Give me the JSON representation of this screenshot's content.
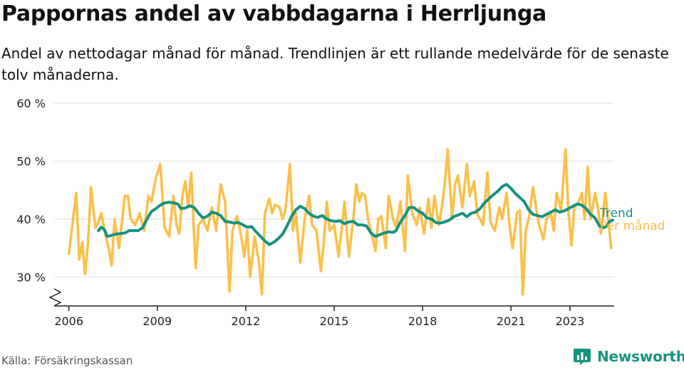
{
  "title": "Pappornas andel av vabbdagarna i Herrljunga",
  "subtitle": "Andel av nettodagar månad för månad. Trendlinjen är ett rullande medelvärde för de senaste tolv månaderna.",
  "source": "Källa: Försäkringskassan",
  "brand": "Newsworthy",
  "colors": {
    "monthly": "#fac04b",
    "trend": "#16927f",
    "grid": "#dddddd",
    "axis": "#222222",
    "brand": "#16927f"
  },
  "chart_data": {
    "type": "line",
    "xlim": [
      2005.5,
      2024.5
    ],
    "ylim": [
      25,
      60
    ],
    "y_ticks": [
      {
        "value": 30,
        "label": "30 %"
      },
      {
        "value": 40,
        "label": "40 %"
      },
      {
        "value": 50,
        "label": "50 %"
      },
      {
        "value": 60,
        "label": "60 %"
      }
    ],
    "x_ticks": [
      {
        "value": 2006,
        "label": "2006"
      },
      {
        "value": 2009,
        "label": "2009"
      },
      {
        "value": 2012,
        "label": "2012"
      },
      {
        "value": 2015,
        "label": "2015"
      },
      {
        "value": 2018,
        "label": "2018"
      },
      {
        "value": 2021,
        "label": "2021"
      },
      {
        "value": 2023,
        "label": "2023"
      }
    ],
    "axis_break": true,
    "grid": true,
    "legend": "right-end labels",
    "series": [
      {
        "name": "Per månad",
        "values": [
          [
            2006.0,
            34.0
          ],
          [
            2006.25,
            44.5
          ],
          [
            2006.35,
            33.0
          ],
          [
            2006.45,
            36.0
          ],
          [
            2006.55,
            30.5
          ],
          [
            2006.65,
            36.0
          ],
          [
            2006.75,
            45.5
          ],
          [
            2006.9,
            38.5
          ],
          [
            2007.0,
            39.5
          ],
          [
            2007.1,
            41.0
          ],
          [
            2007.25,
            37.0
          ],
          [
            2007.35,
            35.0
          ],
          [
            2007.45,
            32.0
          ],
          [
            2007.55,
            40.0
          ],
          [
            2007.7,
            35.0
          ],
          [
            2007.9,
            44.0
          ],
          [
            2008.0,
            44.0
          ],
          [
            2008.1,
            40.0
          ],
          [
            2008.25,
            39.0
          ],
          [
            2008.4,
            41.0
          ],
          [
            2008.55,
            38.0
          ],
          [
            2008.7,
            44.0
          ],
          [
            2008.8,
            43.0
          ],
          [
            2008.95,
            47.0
          ],
          [
            2009.1,
            49.5
          ],
          [
            2009.25,
            38.5
          ],
          [
            2009.4,
            37.0
          ],
          [
            2009.55,
            44.0
          ],
          [
            2009.65,
            39.0
          ],
          [
            2009.75,
            37.5
          ],
          [
            2009.85,
            44.0
          ],
          [
            2009.95,
            46.5
          ],
          [
            2010.05,
            42.0
          ],
          [
            2010.15,
            48.0
          ],
          [
            2010.3,
            31.5
          ],
          [
            2010.4,
            39.0
          ],
          [
            2010.55,
            40.0
          ],
          [
            2010.7,
            38.0
          ],
          [
            2010.85,
            42.0
          ],
          [
            2011.0,
            38.0
          ],
          [
            2011.15,
            46.0
          ],
          [
            2011.3,
            43.0
          ],
          [
            2011.45,
            27.5
          ],
          [
            2011.55,
            38.0
          ],
          [
            2011.7,
            40.5
          ],
          [
            2011.85,
            37.0
          ],
          [
            2011.95,
            33.5
          ],
          [
            2012.05,
            38.0
          ],
          [
            2012.15,
            30.0
          ],
          [
            2012.3,
            37.0
          ],
          [
            2012.45,
            32.5
          ],
          [
            2012.55,
            27.0
          ],
          [
            2012.65,
            41.0
          ],
          [
            2012.8,
            43.5
          ],
          [
            2012.9,
            41.0
          ],
          [
            2013.0,
            42.5
          ],
          [
            2013.15,
            42.0
          ],
          [
            2013.25,
            40.0
          ],
          [
            2013.35,
            41.5
          ],
          [
            2013.5,
            49.5
          ],
          [
            2013.6,
            38.0
          ],
          [
            2013.7,
            41.0
          ],
          [
            2013.85,
            32.5
          ],
          [
            2014.0,
            40.0
          ],
          [
            2014.15,
            44.0
          ],
          [
            2014.25,
            39.0
          ],
          [
            2014.4,
            38.0
          ],
          [
            2014.55,
            31.0
          ],
          [
            2014.65,
            36.0
          ],
          [
            2014.75,
            43.0
          ],
          [
            2014.85,
            38.0
          ],
          [
            2015.0,
            39.0
          ],
          [
            2015.15,
            33.5
          ],
          [
            2015.25,
            38.0
          ],
          [
            2015.35,
            43.0
          ],
          [
            2015.5,
            33.5
          ],
          [
            2015.65,
            40.0
          ],
          [
            2015.75,
            46.0
          ],
          [
            2015.85,
            43.0
          ],
          [
            2015.95,
            44.5
          ],
          [
            2016.05,
            44.0
          ],
          [
            2016.15,
            40.0
          ],
          [
            2016.25,
            38.0
          ],
          [
            2016.4,
            34.5
          ],
          [
            2016.5,
            40.0
          ],
          [
            2016.6,
            40.5
          ],
          [
            2016.75,
            35.0
          ],
          [
            2016.85,
            44.0
          ],
          [
            2017.0,
            40.0
          ],
          [
            2017.1,
            38.5
          ],
          [
            2017.25,
            43.0
          ],
          [
            2017.4,
            34.5
          ],
          [
            2017.5,
            47.5
          ],
          [
            2017.65,
            41.0
          ],
          [
            2017.8,
            39.0
          ],
          [
            2017.9,
            42.0
          ],
          [
            2018.05,
            37.5
          ],
          [
            2018.2,
            43.5
          ],
          [
            2018.3,
            38.5
          ],
          [
            2018.4,
            44.0
          ],
          [
            2018.55,
            39.0
          ],
          [
            2018.65,
            42.0
          ],
          [
            2018.75,
            46.0
          ],
          [
            2018.85,
            52.0
          ],
          [
            2019.0,
            40.0
          ],
          [
            2019.1,
            46.0
          ],
          [
            2019.2,
            47.5
          ],
          [
            2019.35,
            42.0
          ],
          [
            2019.5,
            49.5
          ],
          [
            2019.6,
            44.0
          ],
          [
            2019.75,
            46.5
          ],
          [
            2019.85,
            41.0
          ],
          [
            2020.05,
            39.0
          ],
          [
            2020.2,
            48.0
          ],
          [
            2020.3,
            39.5
          ],
          [
            2020.45,
            38.0
          ],
          [
            2020.6,
            42.0
          ],
          [
            2020.7,
            40.0
          ],
          [
            2020.85,
            44.5
          ],
          [
            2020.95,
            39.0
          ],
          [
            2021.05,
            35.0
          ],
          [
            2021.2,
            41.0
          ],
          [
            2021.3,
            41.5
          ],
          [
            2021.4,
            27.0
          ],
          [
            2021.5,
            38.0
          ],
          [
            2021.6,
            40.0
          ],
          [
            2021.75,
            45.5
          ],
          [
            2021.85,
            42.0
          ],
          [
            2021.95,
            39.0
          ],
          [
            2022.1,
            36.5
          ],
          [
            2022.2,
            40.0
          ],
          [
            2022.35,
            41.0
          ],
          [
            2022.45,
            38.0
          ],
          [
            2022.55,
            44.5
          ],
          [
            2022.7,
            41.5
          ],
          [
            2022.85,
            52.0
          ],
          [
            2022.95,
            41.0
          ],
          [
            2023.05,
            35.5
          ],
          [
            2023.15,
            42.0
          ],
          [
            2023.3,
            43.0
          ],
          [
            2023.4,
            44.5
          ],
          [
            2023.5,
            40.0
          ],
          [
            2023.6,
            49.0
          ],
          [
            2023.7,
            40.0
          ],
          [
            2023.85,
            44.5
          ],
          [
            2023.95,
            42.0
          ],
          [
            2024.05,
            37.5
          ],
          [
            2024.2,
            44.5
          ],
          [
            2024.3,
            40.0
          ],
          [
            2024.4,
            35.0
          ]
        ]
      },
      {
        "name": "Trend",
        "values": [
          [
            2007.0,
            38.0
          ],
          [
            2007.1,
            38.6
          ],
          [
            2007.2,
            38.2
          ],
          [
            2007.3,
            37.0
          ],
          [
            2007.45,
            37.2
          ],
          [
            2007.6,
            37.4
          ],
          [
            2007.75,
            37.5
          ],
          [
            2007.9,
            37.6
          ],
          [
            2008.05,
            38.0
          ],
          [
            2008.2,
            38.0
          ],
          [
            2008.35,
            38.0
          ],
          [
            2008.5,
            38.5
          ],
          [
            2008.65,
            40.0
          ],
          [
            2008.8,
            41.3
          ],
          [
            2008.95,
            41.8
          ],
          [
            2009.1,
            42.4
          ],
          [
            2009.25,
            42.8
          ],
          [
            2009.4,
            42.9
          ],
          [
            2009.55,
            42.8
          ],
          [
            2009.7,
            42.6
          ],
          [
            2009.8,
            41.8
          ],
          [
            2009.95,
            41.9
          ],
          [
            2010.1,
            42.3
          ],
          [
            2010.25,
            42.0
          ],
          [
            2010.4,
            41.0
          ],
          [
            2010.55,
            40.2
          ],
          [
            2010.7,
            40.5
          ],
          [
            2010.85,
            41.2
          ],
          [
            2011.0,
            41.0
          ],
          [
            2011.15,
            40.6
          ],
          [
            2011.3,
            39.6
          ],
          [
            2011.45,
            39.5
          ],
          [
            2011.6,
            39.3
          ],
          [
            2011.75,
            39.4
          ],
          [
            2011.9,
            39.0
          ],
          [
            2012.05,
            38.6
          ],
          [
            2012.2,
            38.7
          ],
          [
            2012.35,
            37.8
          ],
          [
            2012.5,
            37.0
          ],
          [
            2012.65,
            36.2
          ],
          [
            2012.8,
            35.6
          ],
          [
            2012.95,
            36.0
          ],
          [
            2013.1,
            36.6
          ],
          [
            2013.25,
            37.4
          ],
          [
            2013.4,
            38.8
          ],
          [
            2013.55,
            40.4
          ],
          [
            2013.7,
            41.6
          ],
          [
            2013.85,
            42.2
          ],
          [
            2014.0,
            41.8
          ],
          [
            2014.15,
            41.0
          ],
          [
            2014.3,
            40.5
          ],
          [
            2014.45,
            40.3
          ],
          [
            2014.6,
            40.6
          ],
          [
            2014.75,
            40.0
          ],
          [
            2014.9,
            39.7
          ],
          [
            2015.05,
            39.6
          ],
          [
            2015.2,
            39.7
          ],
          [
            2015.35,
            39.2
          ],
          [
            2015.5,
            39.5
          ],
          [
            2015.65,
            39.6
          ],
          [
            2015.8,
            39.0
          ],
          [
            2015.95,
            39.0
          ],
          [
            2016.1,
            38.8
          ],
          [
            2016.25,
            37.6
          ],
          [
            2016.4,
            37.0
          ],
          [
            2016.55,
            37.3
          ],
          [
            2016.7,
            37.6
          ],
          [
            2016.85,
            37.8
          ],
          [
            2017.0,
            37.7
          ],
          [
            2017.1,
            38.0
          ],
          [
            2017.25,
            39.5
          ],
          [
            2017.4,
            40.6
          ],
          [
            2017.55,
            42.0
          ],
          [
            2017.7,
            42.0
          ],
          [
            2017.85,
            41.4
          ],
          [
            2018.0,
            41.0
          ],
          [
            2018.15,
            40.2
          ],
          [
            2018.3,
            40.0
          ],
          [
            2018.45,
            39.4
          ],
          [
            2018.6,
            39.3
          ],
          [
            2018.75,
            39.5
          ],
          [
            2018.9,
            39.8
          ],
          [
            2019.05,
            40.4
          ],
          [
            2019.2,
            40.7
          ],
          [
            2019.35,
            41.0
          ],
          [
            2019.5,
            40.4
          ],
          [
            2019.65,
            41.0
          ],
          [
            2019.8,
            41.2
          ],
          [
            2019.95,
            41.8
          ],
          [
            2020.1,
            42.8
          ],
          [
            2020.25,
            43.5
          ],
          [
            2020.4,
            44.2
          ],
          [
            2020.55,
            44.8
          ],
          [
            2020.7,
            45.6
          ],
          [
            2020.85,
            46.0
          ],
          [
            2021.0,
            45.3
          ],
          [
            2021.15,
            44.4
          ],
          [
            2021.3,
            43.7
          ],
          [
            2021.45,
            43.0
          ],
          [
            2021.6,
            41.6
          ],
          [
            2021.75,
            40.8
          ],
          [
            2021.9,
            40.6
          ],
          [
            2022.05,
            40.4
          ],
          [
            2022.2,
            40.8
          ],
          [
            2022.35,
            41.2
          ],
          [
            2022.5,
            41.6
          ],
          [
            2022.65,
            41.2
          ],
          [
            2022.8,
            41.4
          ],
          [
            2022.95,
            41.8
          ],
          [
            2023.1,
            42.2
          ],
          [
            2023.25,
            42.6
          ],
          [
            2023.4,
            42.4
          ],
          [
            2023.55,
            41.8
          ],
          [
            2023.7,
            40.8
          ],
          [
            2023.85,
            40.2
          ],
          [
            2024.0,
            38.8
          ],
          [
            2024.15,
            38.5
          ],
          [
            2024.25,
            38.8
          ],
          [
            2024.35,
            39.6
          ],
          [
            2024.45,
            39.8
          ]
        ]
      }
    ]
  }
}
